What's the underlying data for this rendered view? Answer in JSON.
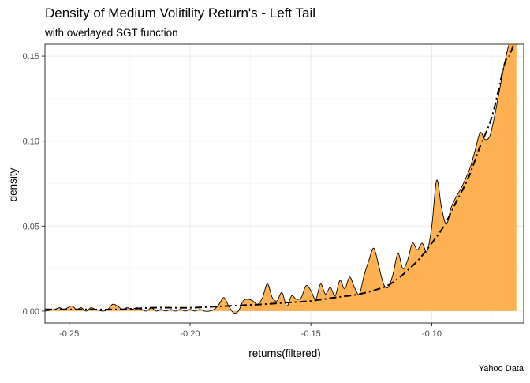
{
  "chart_data": {
    "type": "area",
    "title": "Density of Medium Volitility Return's - Left Tail",
    "subtitle": "with overlayed SGT function",
    "xlabel": "returns(filtered)",
    "ylabel": "density",
    "caption": "Yahoo Data",
    "xlim": [
      -0.26,
      -0.062
    ],
    "ylim": [
      -0.007,
      0.157
    ],
    "x_ticks": [
      -0.25,
      -0.2,
      -0.15,
      -0.1
    ],
    "x_tick_labels": [
      "-0.25",
      "-0.20",
      "-0.15",
      "-0.10"
    ],
    "y_ticks": [
      0.0,
      0.05,
      0.1,
      0.15
    ],
    "y_tick_labels": [
      "0.00",
      "0.05",
      "0.10",
      "0.15"
    ],
    "grid": true,
    "colors": {
      "fill": "#FFAE4A",
      "outline": "#000000",
      "panel_border": "#333333"
    },
    "series": [
      {
        "kind": "density-area",
        "x": [
          -0.26,
          -0.256,
          -0.254,
          -0.252,
          -0.249,
          -0.247,
          -0.245,
          -0.243,
          -0.241,
          -0.239,
          -0.236,
          -0.234,
          -0.232,
          -0.23,
          -0.228,
          -0.226,
          -0.224,
          -0.222,
          -0.22,
          -0.218,
          -0.216,
          -0.214,
          -0.212,
          -0.21,
          -0.208,
          -0.206,
          -0.204,
          -0.202,
          -0.2,
          -0.198,
          -0.196,
          -0.194,
          -0.192,
          -0.19,
          -0.188,
          -0.186,
          -0.184,
          -0.182,
          -0.18,
          -0.178,
          -0.176,
          -0.174,
          -0.172,
          -0.17,
          -0.168,
          -0.166,
          -0.164,
          -0.162,
          -0.16,
          -0.158,
          -0.156,
          -0.154,
          -0.152,
          -0.15,
          -0.148,
          -0.146,
          -0.144,
          -0.142,
          -0.14,
          -0.138,
          -0.136,
          -0.134,
          -0.132,
          -0.13,
          -0.128,
          -0.126,
          -0.124,
          -0.122,
          -0.12,
          -0.118,
          -0.116,
          -0.114,
          -0.112,
          -0.11,
          -0.108,
          -0.106,
          -0.104,
          -0.102,
          -0.1,
          -0.098,
          -0.096,
          -0.094,
          -0.092,
          -0.09,
          -0.088,
          -0.086,
          -0.084,
          -0.082,
          -0.08,
          -0.078,
          -0.076,
          -0.074,
          -0.072,
          -0.07,
          -0.068,
          -0.066,
          -0.065
        ],
        "y": [
          0.0,
          0.001,
          0.002,
          0.001,
          0.003,
          0.001,
          0.002,
          0.0,
          0.002,
          0.001,
          0.0,
          0.001,
          0.004,
          0.003,
          0.001,
          0.002,
          0.001,
          0.002,
          0.001,
          0.0,
          0.002,
          0.0,
          0.001,
          0.0,
          0.001,
          0.0,
          0.001,
          0.0,
          0.001,
          0.0,
          0.001,
          0.0,
          0.0,
          0.001,
          0.004,
          0.008,
          0.003,
          -0.001,
          0.0,
          0.006,
          0.007,
          0.006,
          0.004,
          0.008,
          0.016,
          0.008,
          0.006,
          0.011,
          0.003,
          0.009,
          0.007,
          0.008,
          0.015,
          0.012,
          0.007,
          0.016,
          0.01,
          0.014,
          0.009,
          0.018,
          0.013,
          0.02,
          0.014,
          0.01,
          0.021,
          0.03,
          0.037,
          0.027,
          0.016,
          0.014,
          0.022,
          0.034,
          0.025,
          0.03,
          0.04,
          0.036,
          0.04,
          0.035,
          0.05,
          0.077,
          0.061,
          0.051,
          0.061,
          0.067,
          0.072,
          0.078,
          0.085,
          0.095,
          0.105,
          0.101,
          0.103,
          0.115,
          0.13,
          0.145,
          0.157,
          0.157,
          0.157
        ]
      },
      {
        "kind": "sgt-fit",
        "x": [
          -0.26,
          -0.245,
          -0.23,
          -0.215,
          -0.2,
          -0.185,
          -0.17,
          -0.16,
          -0.15,
          -0.14,
          -0.13,
          -0.12,
          -0.115,
          -0.11,
          -0.105,
          -0.1,
          -0.095,
          -0.09,
          -0.085,
          -0.08,
          -0.075,
          -0.07,
          -0.068,
          -0.066,
          -0.065
        ],
        "y": [
          0.001,
          0.001,
          0.001,
          0.002,
          0.002,
          0.003,
          0.004,
          0.005,
          0.006,
          0.008,
          0.01,
          0.014,
          0.018,
          0.024,
          0.031,
          0.04,
          0.05,
          0.064,
          0.078,
          0.097,
          0.115,
          0.145,
          0.15,
          0.157,
          0.157
        ]
      }
    ]
  }
}
